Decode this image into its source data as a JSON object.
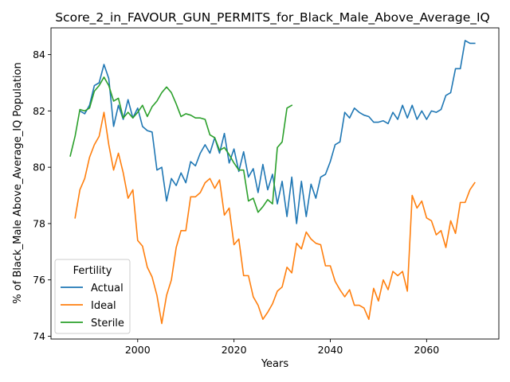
{
  "chart_data": {
    "type": "line",
    "title": "Score_2_in_FAVOUR_GUN_PERMITS_for_Black_Male_Above_Average_IQ",
    "xlabel": "Years",
    "ylabel": "% of Black_Male Above_Average_IQ Population",
    "xlim": [
      1982,
      2075
    ],
    "ylim": [
      73.9,
      84.95
    ],
    "xticks": [
      2000,
      2020,
      2040,
      2060
    ],
    "yticks": [
      74,
      76,
      78,
      80,
      82,
      84
    ],
    "grid": false,
    "legend": {
      "title": "Fertility",
      "position": "lower-left"
    },
    "series": [
      {
        "name": "Actual",
        "color": "#1f77b4",
        "x": [
          1988,
          1989,
          1990,
          1991,
          1992,
          1993,
          1994,
          1995,
          1996,
          1997,
          1998,
          1999,
          2000,
          2001,
          2002,
          2003,
          2004,
          2005,
          2006,
          2007,
          2008,
          2009,
          2010,
          2011,
          2012,
          2013,
          2014,
          2015,
          2016,
          2017,
          2018,
          2019,
          2020,
          2021,
          2022,
          2023,
          2024,
          2025,
          2026,
          2027,
          2028,
          2029,
          2030,
          2031,
          2032,
          2033,
          2034,
          2035,
          2036,
          2037,
          2038,
          2039,
          2040,
          2041,
          2042,
          2043,
          2044,
          2045,
          2046,
          2047,
          2048,
          2049,
          2050,
          2051,
          2052,
          2053,
          2054,
          2055,
          2056,
          2057,
          2058,
          2059,
          2060,
          2061,
          2062,
          2063,
          2064,
          2065,
          2066,
          2067,
          2068,
          2069,
          2070
        ],
        "values": [
          82.0,
          81.9,
          82.2,
          82.9,
          83.0,
          83.65,
          83.15,
          81.45,
          82.2,
          81.7,
          82.4,
          81.75,
          82.1,
          81.45,
          81.3,
          81.25,
          79.9,
          80.0,
          78.8,
          79.6,
          79.35,
          79.8,
          79.45,
          80.2,
          80.05,
          80.5,
          80.8,
          80.5,
          81.05,
          80.5,
          81.2,
          80.15,
          80.65,
          79.85,
          80.55,
          79.65,
          79.95,
          79.1,
          80.1,
          79.2,
          79.75,
          78.7,
          79.5,
          78.25,
          79.65,
          78.0,
          79.5,
          78.25,
          79.4,
          78.9,
          79.65,
          79.75,
          80.2,
          80.8,
          80.9,
          81.95,
          81.75,
          82.1,
          81.95,
          81.85,
          81.8,
          81.6,
          81.6,
          81.65,
          81.55,
          81.95,
          81.7,
          82.2,
          81.75,
          82.2,
          81.7,
          82.0,
          81.7,
          82.0,
          81.95,
          82.05,
          82.55,
          82.65,
          83.5,
          83.5,
          84.5,
          84.4,
          84.4
        ]
      },
      {
        "name": "Ideal",
        "color": "#ff7f0e",
        "x": [
          1987,
          1988,
          1989,
          1990,
          1991,
          1992,
          1993,
          1994,
          1995,
          1996,
          1997,
          1998,
          1999,
          2000,
          2001,
          2002,
          2003,
          2004,
          2005,
          2006,
          2007,
          2008,
          2009,
          2010,
          2011,
          2012,
          2013,
          2014,
          2015,
          2016,
          2017,
          2018,
          2019,
          2020,
          2021,
          2022,
          2023,
          2024,
          2025,
          2026,
          2027,
          2028,
          2029,
          2030,
          2031,
          2032,
          2033,
          2034,
          2035,
          2036,
          2037,
          2038,
          2039,
          2040,
          2041,
          2042,
          2043,
          2044,
          2045,
          2046,
          2047,
          2048,
          2049,
          2050,
          2051,
          2052,
          2053,
          2054,
          2055,
          2056,
          2057,
          2058,
          2059,
          2060,
          2061,
          2062,
          2063,
          2064,
          2065,
          2066,
          2067,
          2068,
          2069,
          2070
        ],
        "values": [
          78.2,
          79.2,
          79.6,
          80.35,
          80.8,
          81.1,
          81.95,
          80.8,
          79.9,
          80.5,
          79.8,
          78.9,
          79.2,
          77.4,
          77.2,
          76.45,
          76.1,
          75.45,
          74.45,
          75.45,
          76.0,
          77.15,
          77.75,
          77.75,
          78.95,
          78.95,
          79.1,
          79.45,
          79.6,
          79.25,
          79.55,
          78.3,
          78.55,
          77.25,
          77.45,
          76.15,
          76.15,
          75.4,
          75.1,
          74.6,
          74.85,
          75.15,
          75.6,
          75.75,
          76.45,
          76.25,
          77.3,
          77.1,
          77.7,
          77.45,
          77.3,
          77.25,
          76.5,
          76.5,
          75.95,
          75.65,
          75.4,
          75.65,
          75.1,
          75.1,
          75.0,
          74.6,
          75.7,
          75.25,
          76.0,
          75.65,
          76.3,
          76.15,
          76.3,
          75.6,
          79.0,
          78.55,
          78.8,
          78.2,
          78.1,
          77.6,
          77.75,
          77.15,
          78.1,
          77.65,
          78.75,
          78.75,
          79.2,
          79.45
        ]
      },
      {
        "name": "Sterile",
        "color": "#2ca02c",
        "x": [
          1986,
          1987,
          1988,
          1989,
          1990,
          1991,
          1992,
          1993,
          1994,
          1995,
          1996,
          1997,
          1998,
          1999,
          2000,
          2001,
          2002,
          2003,
          2004,
          2005,
          2006,
          2007,
          2008,
          2009,
          2010,
          2011,
          2012,
          2013,
          2014,
          2015,
          2016,
          2017,
          2018,
          2019,
          2020,
          2021,
          2022,
          2023,
          2024,
          2025,
          2026,
          2027,
          2028,
          2029,
          2030,
          2031,
          2032
        ],
        "values": [
          80.4,
          81.1,
          82.05,
          82.0,
          82.1,
          82.7,
          82.9,
          83.2,
          82.9,
          82.35,
          82.45,
          81.75,
          81.95,
          81.75,
          81.95,
          82.2,
          81.8,
          82.15,
          82.35,
          82.65,
          82.85,
          82.65,
          82.25,
          81.8,
          81.9,
          81.85,
          81.75,
          81.75,
          81.7,
          81.15,
          81.05,
          80.6,
          80.7,
          80.45,
          80.15,
          79.9,
          79.9,
          78.8,
          78.9,
          78.4,
          78.6,
          78.85,
          78.7,
          80.7,
          80.9,
          82.1,
          82.2
        ]
      }
    ]
  }
}
